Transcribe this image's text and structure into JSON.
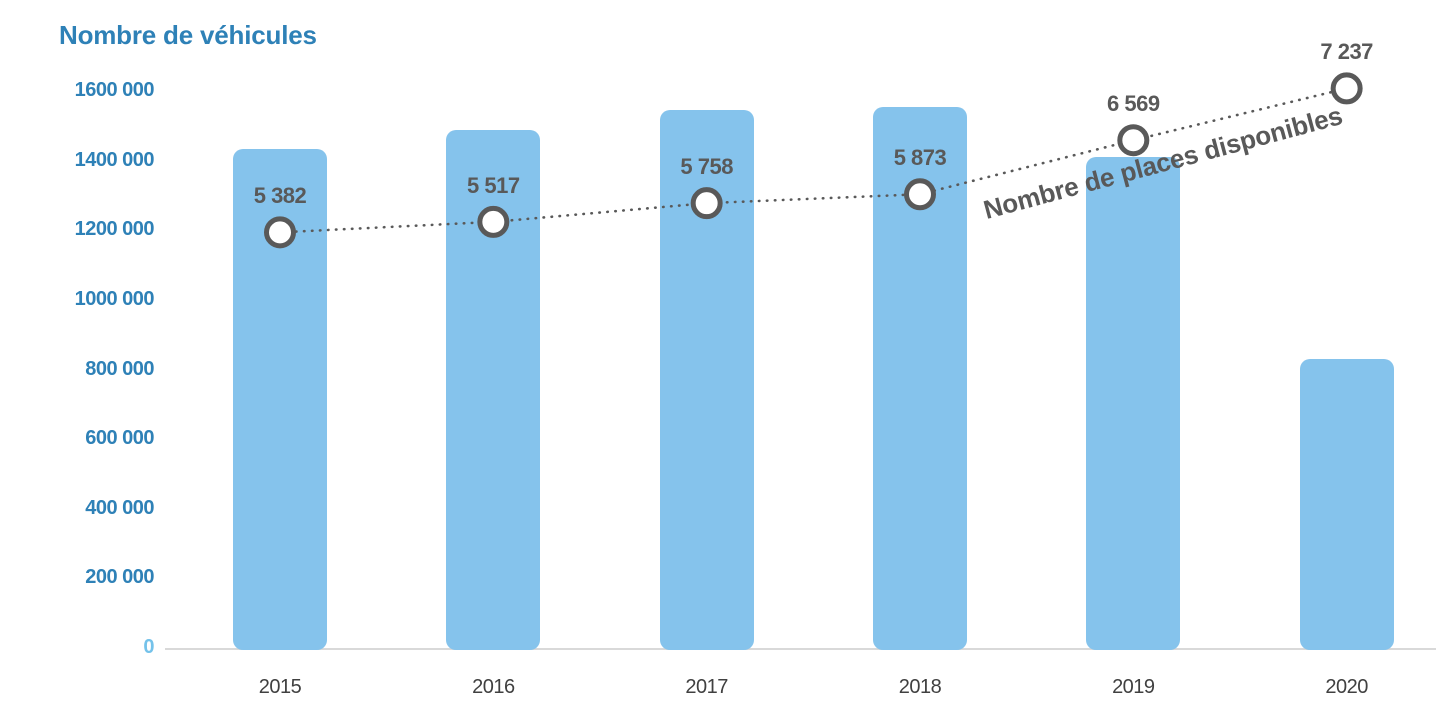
{
  "header": {
    "title": "Nombre de véhicules",
    "title_color": "#2E81B7"
  },
  "chart_data": {
    "type": "bar",
    "title": "Nombre de véhicules",
    "categories": [
      "2015",
      "2016",
      "2017",
      "2018",
      "2019",
      "2020"
    ],
    "series": [
      {
        "name": "Nombre de véhicules",
        "type": "bar",
        "axis": "primary",
        "color": "#85C3EC",
        "values": [
          1440000,
          1495000,
          1550000,
          1560000,
          1415000,
          835000
        ]
      },
      {
        "name": "Nombre de places disponibles",
        "type": "line",
        "axis": "secondary",
        "line_style": "dotted",
        "marker": "open-circle",
        "marker_fill": "#FFFFFF",
        "color": "#595959",
        "values": [
          5382,
          5517,
          5758,
          5873,
          6569,
          7237
        ],
        "value_labels": [
          "5 382",
          "5 517",
          "5 758",
          "5 873",
          "6 569",
          "7 237"
        ]
      }
    ],
    "y_axis": {
      "range": [
        0,
        1600000
      ],
      "tick_step": 200000,
      "tick_labels": [
        "0",
        "200 000",
        "400 000",
        "600 000",
        "800 000",
        "1000 000",
        "1200 000",
        "1400 000",
        "1600 000"
      ],
      "label_color": "#2E81B7",
      "zero_label_color": "#74C2EA"
    },
    "secondary_axis": {
      "visible": false,
      "range": [
        0,
        7200
      ]
    },
    "x_axis": {
      "labels": [
        "2015",
        "2016",
        "2017",
        "2018",
        "2019",
        "2020"
      ],
      "label_color": "#404040",
      "line_color": "#D9D9D9"
    },
    "annotation": {
      "text": "Nombre de places disponibles",
      "color": "#595959",
      "rotation_deg": -15
    },
    "grid": false,
    "legend_position": "none",
    "value_label_color": "#595959"
  }
}
